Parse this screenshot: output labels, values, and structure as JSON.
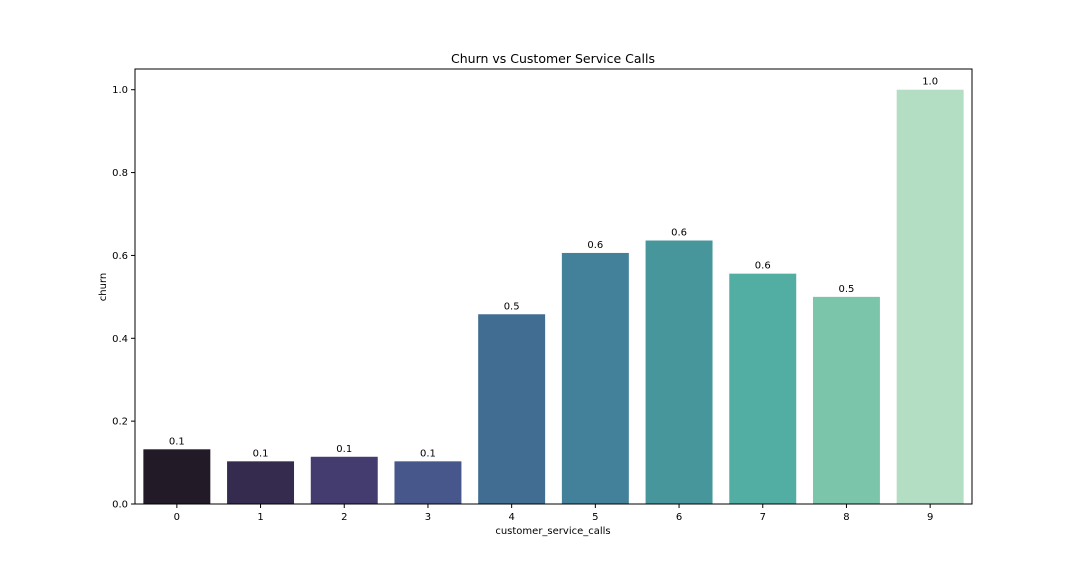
{
  "chart_data": {
    "type": "bar",
    "title": "Churn vs Customer Service Calls",
    "xlabel": "customer_service_calls",
    "ylabel": "churn",
    "categories": [
      "0",
      "1",
      "2",
      "3",
      "4",
      "5",
      "6",
      "7",
      "8",
      "9"
    ],
    "values": [
      0.132,
      0.103,
      0.114,
      0.103,
      0.458,
      0.606,
      0.636,
      0.556,
      0.5,
      1.0
    ],
    "data_labels": [
      "0.1",
      "0.1",
      "0.1",
      "0.1",
      "0.5",
      "0.6",
      "0.6",
      "0.6",
      "0.5",
      "1.0"
    ],
    "colors": [
      "#231a28",
      "#352b4f",
      "#443c6e",
      "#47578c",
      "#416d92",
      "#43809a",
      "#46969b",
      "#52ada2",
      "#7bc6aa",
      "#b4dec3"
    ],
    "yticks": [
      0.0,
      0.2,
      0.4,
      0.6,
      0.8,
      1.0
    ],
    "ytick_labels": [
      "0.0",
      "0.2",
      "0.4",
      "0.6",
      "0.8",
      "1.0"
    ],
    "ylim": [
      0,
      1.05
    ],
    "grid": false,
    "legend": "none"
  }
}
